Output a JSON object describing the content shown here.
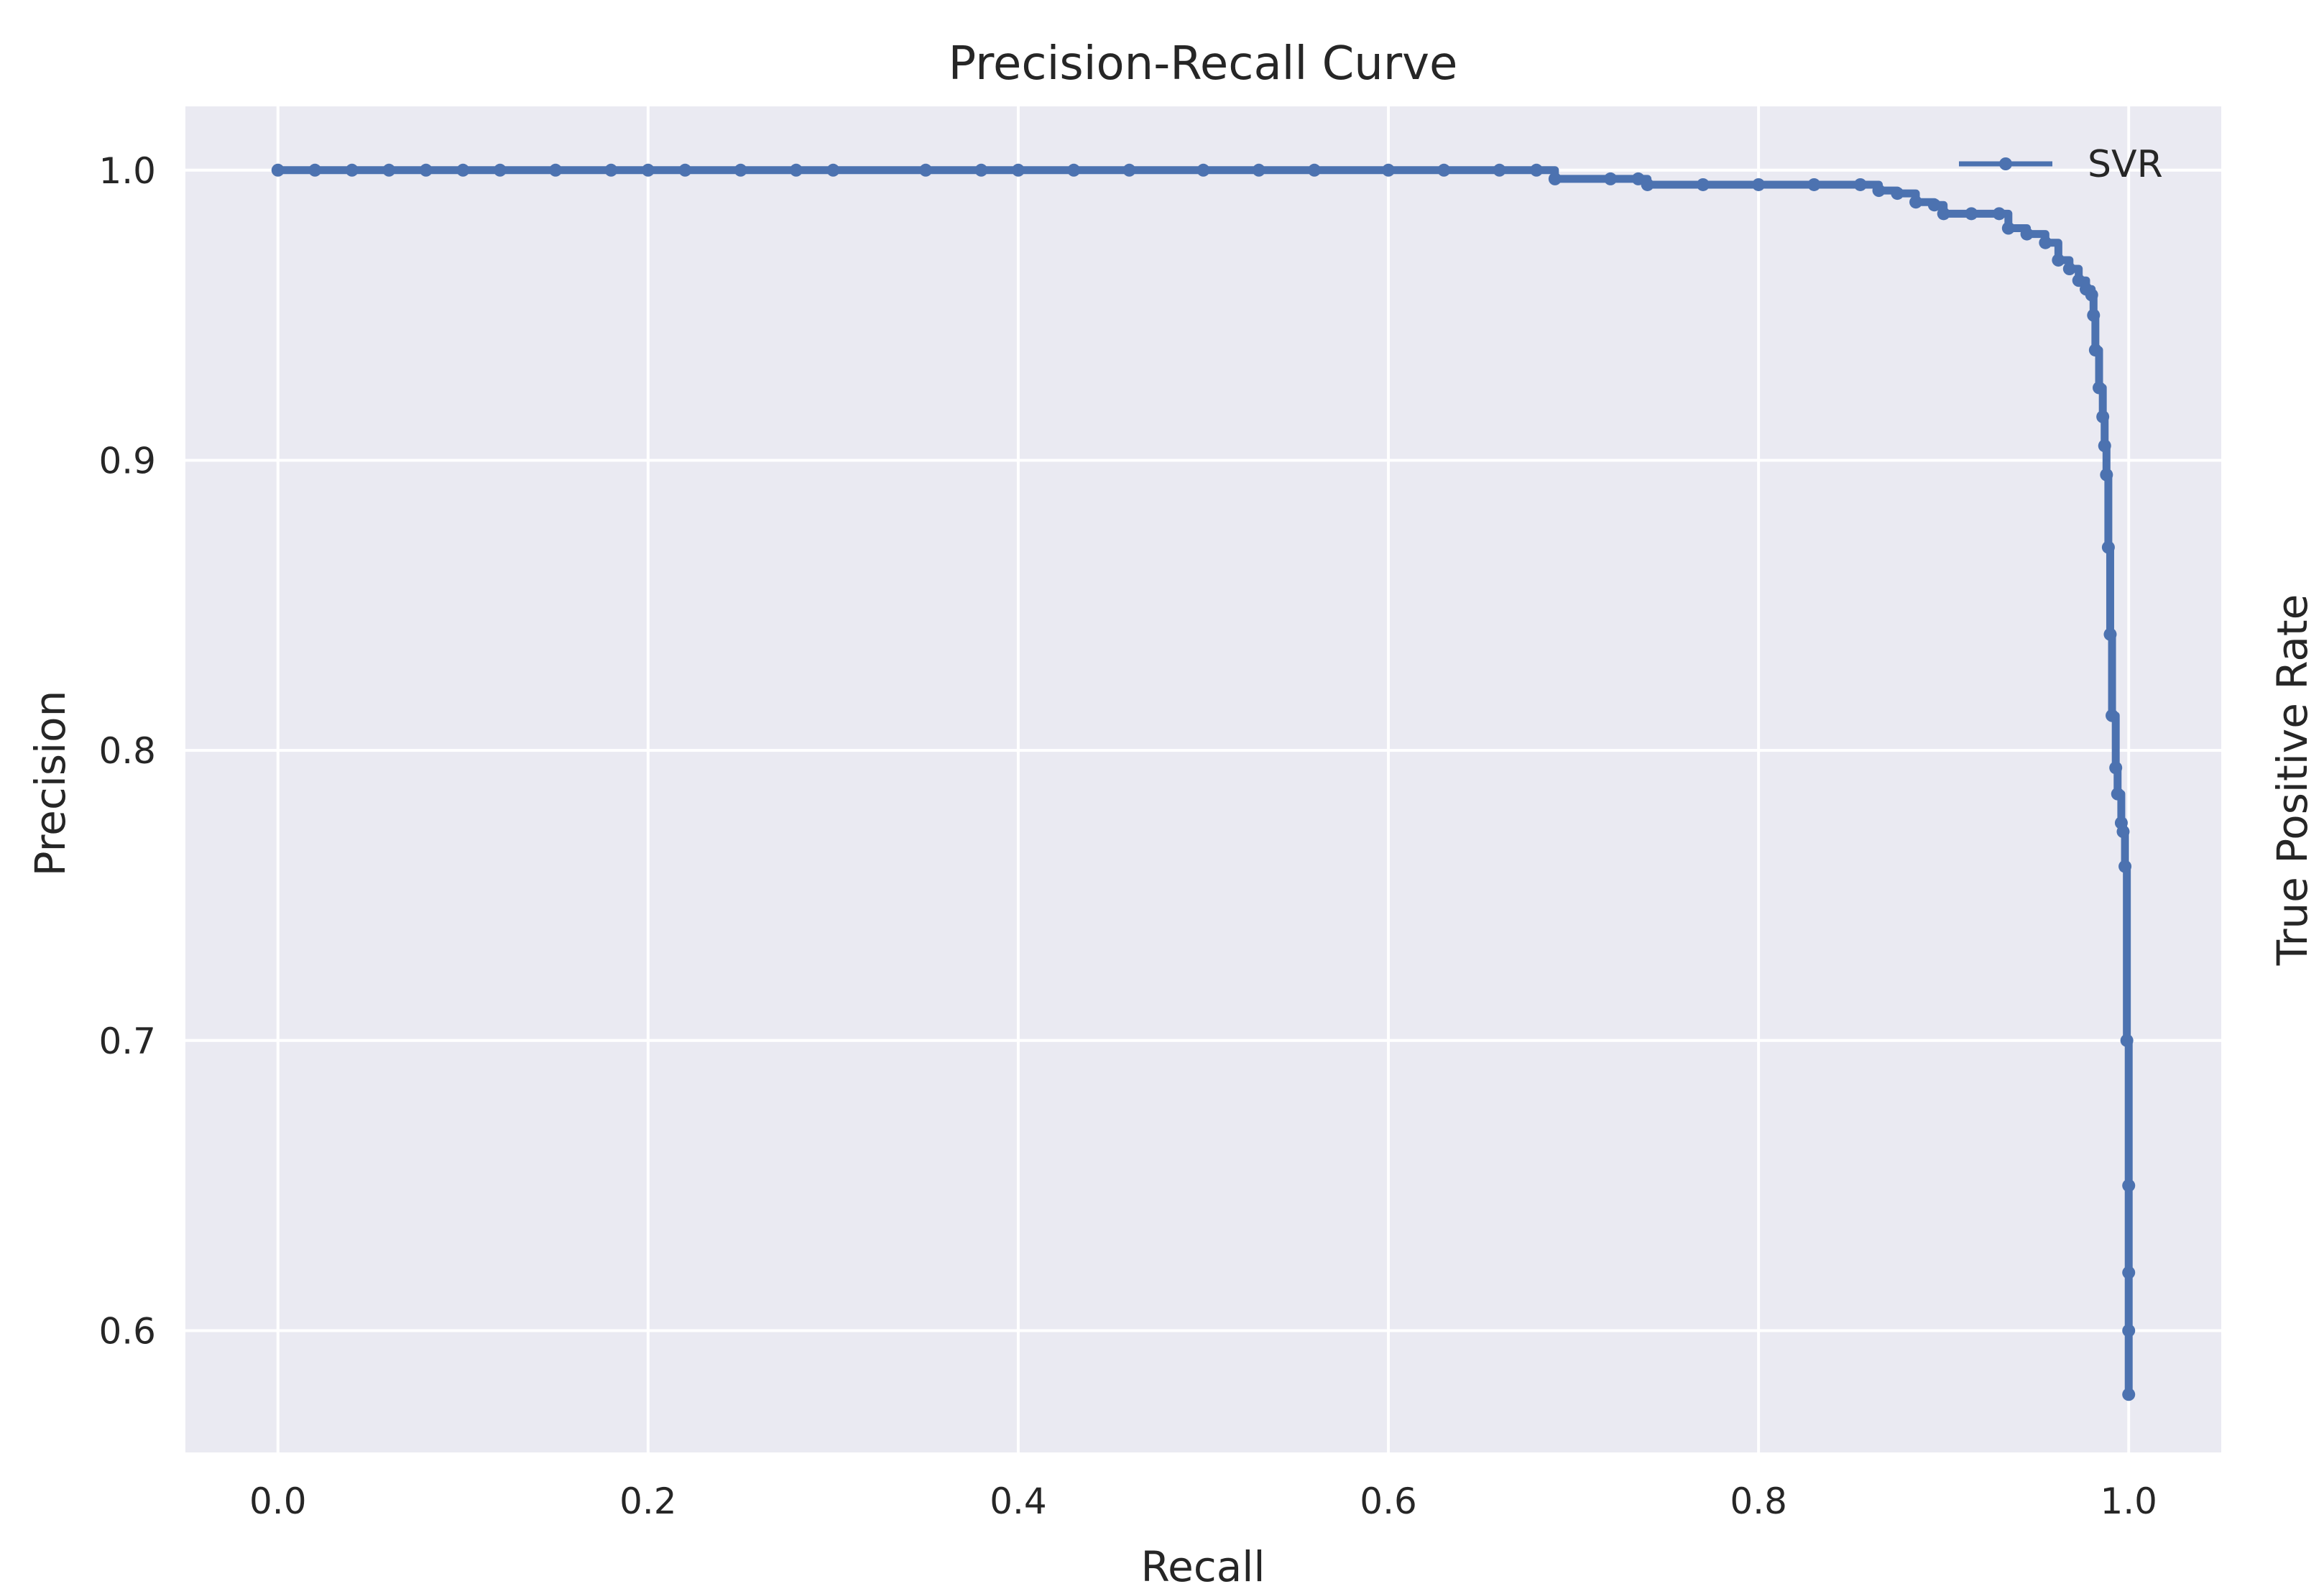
{
  "chart_data": {
    "type": "line",
    "title": "Precision-Recall Curve",
    "xlabel": "Recall",
    "ylabel": "Precision",
    "ylabel_right": "True Positive Rate",
    "xlim": [
      -0.05,
      1.05
    ],
    "ylim": [
      0.558,
      1.022
    ],
    "grid": true,
    "legend_position": "top-right",
    "x_ticks": [
      0.0,
      0.2,
      0.4,
      0.6,
      0.8,
      1.0
    ],
    "x_tick_labels": [
      "0.0",
      "0.2",
      "0.4",
      "0.6",
      "0.8",
      "1.0"
    ],
    "y_ticks": [
      0.6,
      0.7,
      0.8,
      0.9,
      1.0
    ],
    "y_tick_labels": [
      "0.6",
      "0.7",
      "0.8",
      "0.9",
      "1.0"
    ],
    "colors": {
      "series": "#4C72B0",
      "background": "#EAEAF2",
      "grid": "#FFFFFF"
    },
    "series": [
      {
        "name": "SVR",
        "marker": "dot",
        "x": [
          0.0,
          0.02,
          0.04,
          0.06,
          0.08,
          0.1,
          0.12,
          0.15,
          0.18,
          0.2,
          0.22,
          0.25,
          0.28,
          0.3,
          0.35,
          0.38,
          0.4,
          0.43,
          0.46,
          0.5,
          0.53,
          0.56,
          0.6,
          0.63,
          0.66,
          0.68,
          0.69,
          0.72,
          0.735,
          0.74,
          0.77,
          0.8,
          0.83,
          0.855,
          0.865,
          0.875,
          0.885,
          0.895,
          0.9,
          0.915,
          0.93,
          0.935,
          0.945,
          0.955,
          0.962,
          0.968,
          0.973,
          0.977,
          0.98,
          0.981,
          0.982,
          0.984,
          0.986,
          0.987,
          0.988,
          0.989,
          0.99,
          0.991,
          0.993,
          0.994,
          0.996,
          0.997,
          0.998,
          0.999,
          1.0,
          1.0,
          1.0,
          1.0
        ],
        "y": [
          1.0,
          1.0,
          1.0,
          1.0,
          1.0,
          1.0,
          1.0,
          1.0,
          1.0,
          1.0,
          1.0,
          1.0,
          1.0,
          1.0,
          1.0,
          1.0,
          1.0,
          1.0,
          1.0,
          1.0,
          1.0,
          1.0,
          1.0,
          1.0,
          1.0,
          1.0,
          0.997,
          0.997,
          0.997,
          0.995,
          0.995,
          0.995,
          0.995,
          0.995,
          0.993,
          0.992,
          0.989,
          0.988,
          0.985,
          0.985,
          0.985,
          0.98,
          0.978,
          0.975,
          0.969,
          0.966,
          0.962,
          0.959,
          0.957,
          0.95,
          0.938,
          0.925,
          0.915,
          0.905,
          0.895,
          0.87,
          0.84,
          0.812,
          0.794,
          0.785,
          0.775,
          0.772,
          0.76,
          0.7,
          0.65,
          0.62,
          0.6,
          0.578
        ]
      }
    ]
  }
}
